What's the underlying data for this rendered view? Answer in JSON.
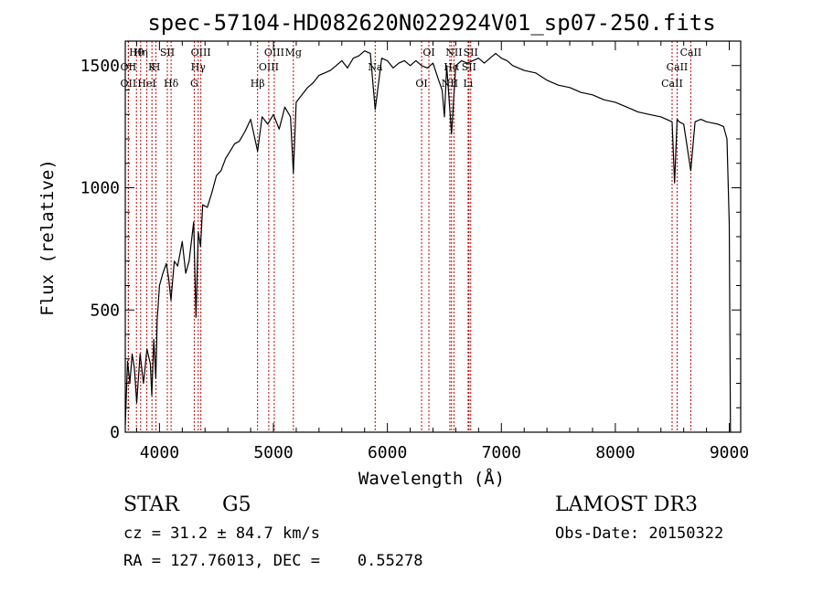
{
  "chart_data": {
    "type": "line",
    "title": "spec-57104-HD082620N022924V01_sp07-250.fits",
    "xlabel": "Wavelength (Å)",
    "ylabel": "Flux (relative)",
    "xlim": [
      3700,
      9100
    ],
    "ylim": [
      0,
      1600
    ],
    "xticks": [
      4000,
      5000,
      6000,
      7000,
      8000,
      9000
    ],
    "yticks": [
      0,
      500,
      1000,
      1500
    ],
    "series": [
      {
        "name": "spectrum",
        "x": [
          3700,
          3720,
          3740,
          3760,
          3780,
          3800,
          3830,
          3860,
          3890,
          3920,
          3933,
          3950,
          3968,
          3980,
          4000,
          4030,
          4060,
          4080,
          4101,
          4130,
          4160,
          4200,
          4230,
          4260,
          4300,
          4320,
          4340,
          4360,
          4380,
          4420,
          4460,
          4500,
          4540,
          4580,
          4620,
          4660,
          4700,
          4750,
          4800,
          4861,
          4900,
          4950,
          5000,
          5050,
          5100,
          5150,
          5175,
          5200,
          5250,
          5300,
          5350,
          5400,
          5450,
          5500,
          5550,
          5600,
          5650,
          5700,
          5750,
          5800,
          5850,
          5893,
          5950,
          6000,
          6050,
          6100,
          6150,
          6200,
          6250,
          6300,
          6350,
          6400,
          6450,
          6480,
          6500,
          6520,
          6563,
          6600,
          6650,
          6700,
          6750,
          6800,
          6850,
          6900,
          6950,
          7000,
          7050,
          7100,
          7200,
          7300,
          7400,
          7500,
          7600,
          7700,
          7800,
          7900,
          8000,
          8100,
          8200,
          8300,
          8400,
          8498,
          8520,
          8542,
          8560,
          8600,
          8662,
          8700,
          8750,
          8800,
          8850,
          8900,
          8950,
          8980,
          9000,
          9010
        ],
        "y": [
          30,
          290,
          200,
          320,
          260,
          120,
          320,
          200,
          340,
          280,
          150,
          380,
          220,
          460,
          600,
          650,
          690,
          630,
          540,
          700,
          680,
          780,
          650,
          700,
          860,
          470,
          820,
          760,
          930,
          920,
          980,
          1050,
          1070,
          1120,
          1150,
          1180,
          1190,
          1230,
          1280,
          1150,
          1290,
          1260,
          1300,
          1240,
          1330,
          1290,
          1060,
          1350,
          1380,
          1410,
          1430,
          1460,
          1470,
          1480,
          1500,
          1520,
          1490,
          1530,
          1540,
          1560,
          1550,
          1320,
          1530,
          1520,
          1490,
          1510,
          1520,
          1500,
          1520,
          1500,
          1490,
          1510,
          1440,
          1400,
          1290,
          1500,
          1220,
          1500,
          1520,
          1510,
          1520,
          1530,
          1510,
          1530,
          1550,
          1530,
          1520,
          1500,
          1480,
          1470,
          1440,
          1420,
          1410,
          1390,
          1380,
          1360,
          1350,
          1330,
          1310,
          1300,
          1290,
          1270,
          1020,
          1280,
          1270,
          1260,
          1070,
          1270,
          1280,
          1270,
          1265,
          1260,
          1250,
          1200,
          850,
          0
        ]
      }
    ],
    "lines": [
      {
        "label": "Hθ",
        "wave": 3798
      },
      {
        "label": "OII",
        "wave": 3727
      },
      {
        "label": "OII",
        "wave": 3727
      },
      {
        "label": "Hη",
        "wave": 3835
      },
      {
        "label": "K",
        "wave": 3934
      },
      {
        "label": "HeI",
        "wave": 3889
      },
      {
        "label": "SII",
        "wave": 4069
      },
      {
        "label": "H",
        "wave": 3969
      },
      {
        "label": "Hδ",
        "wave": 4102
      },
      {
        "label": "OIII",
        "wave": 4363
      },
      {
        "label": "Hγ",
        "wave": 4340
      },
      {
        "label": "G",
        "wave": 4305
      },
      {
        "label": "OIII",
        "wave": 5007
      },
      {
        "label": "OIII",
        "wave": 4959
      },
      {
        "label": "Hβ",
        "wave": 4861
      },
      {
        "label": "Mg",
        "wave": 5175
      },
      {
        "label": "Na",
        "wave": 5893
      },
      {
        "label": "OI",
        "wave": 6300
      },
      {
        "label": "OI",
        "wave": 6364
      },
      {
        "label": "Hα",
        "wave": 6563
      },
      {
        "label": "NII",
        "wave": 6548
      },
      {
        "label": "NII",
        "wave": 6584
      },
      {
        "label": "SII",
        "wave": 6716
      },
      {
        "label": "Li",
        "wave": 6708
      },
      {
        "label": "SII",
        "wave": 6731
      },
      {
        "label": "CaII",
        "wave": 8542
      },
      {
        "label": "CaII",
        "wave": 8498
      },
      {
        "label": "CaII",
        "wave": 8662
      }
    ]
  },
  "info": {
    "object_class": "STAR",
    "subclass": "G5",
    "survey": "LAMOST DR3",
    "cz": "cz = 31.2 ± 84.7 km/s",
    "obs_date": "Obs-Date: 20150322",
    "coords": "RA = 127.76013, DEC =    0.55278"
  }
}
